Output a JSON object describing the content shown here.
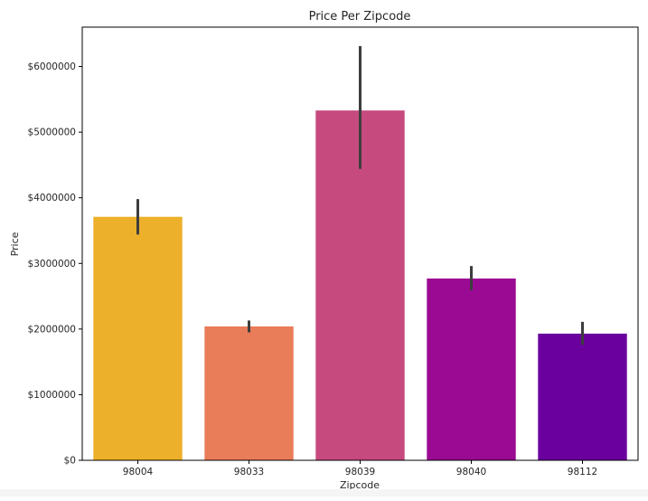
{
  "chart_data": {
    "type": "bar",
    "title": "Price Per Zipcode",
    "xlabel": "Zipcode",
    "ylabel": "Price",
    "categories": [
      "98004",
      "98033",
      "98039",
      "98040",
      "98112"
    ],
    "values": [
      3710000,
      2040000,
      5330000,
      2770000,
      1930000
    ],
    "error_bars": [
      [
        3440000,
        3980000
      ],
      [
        1950000,
        2130000
      ],
      [
        4440000,
        6310000
      ],
      [
        2590000,
        2960000
      ],
      [
        1760000,
        2110000
      ]
    ],
    "colors": [
      "#ecb02a",
      "#e97c59",
      "#c74a7f",
      "#9b0a93",
      "#6a009e"
    ],
    "error_bar_color": "#3d3d3d",
    "ylim": [
      0,
      6600000
    ],
    "yticks": [
      0,
      1000000,
      2000000,
      3000000,
      4000000,
      5000000,
      6000000
    ],
    "ytick_labels": [
      "$0",
      "$1000000",
      "$2000000",
      "$3000000",
      "$4000000",
      "$5000000",
      "$6000000"
    ],
    "grid": false,
    "legend": "none"
  }
}
